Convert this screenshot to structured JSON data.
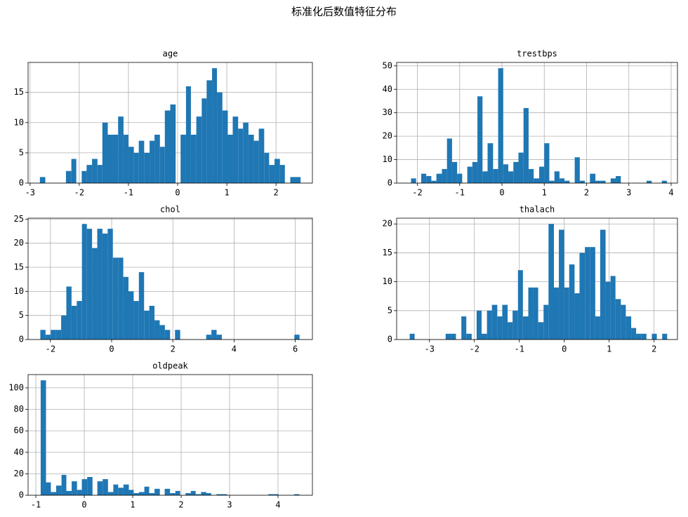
{
  "title": "标准化后数值特征分布",
  "chart_data": [
    {
      "type": "histogram",
      "title": "age",
      "color": "#1f77b4",
      "grid": true,
      "bins": [
        -2.8,
        -2.69,
        -2.59,
        -2.48,
        -2.38,
        -2.27,
        -2.16,
        -2.06,
        -1.95,
        -1.85,
        -1.74,
        -1.63,
        -1.53,
        -1.42,
        -1.32,
        -1.21,
        -1.1,
        -1.0,
        -0.89,
        -0.79,
        -0.68,
        -0.57,
        -0.47,
        -0.36,
        -0.26,
        -0.15,
        -0.04,
        0.06,
        0.17,
        0.27,
        0.38,
        0.49,
        0.59,
        0.7,
        0.8,
        0.91,
        1.02,
        1.12,
        1.23,
        1.33,
        1.44,
        1.55,
        1.65,
        1.76,
        1.86,
        1.97,
        2.08,
        2.18,
        2.29,
        2.39,
        2.5
      ],
      "values": [
        1,
        0,
        0,
        0,
        0,
        2,
        4,
        0,
        2,
        3,
        4,
        3,
        10,
        8,
        8,
        11,
        8,
        6,
        5,
        7,
        5,
        7,
        8,
        6,
        12,
        13,
        0,
        8,
        16,
        8,
        11,
        14,
        17,
        19,
        15,
        12,
        8,
        11,
        9,
        10,
        8,
        7,
        9,
        5,
        3,
        4,
        3,
        0,
        1,
        1
      ],
      "xlim": [
        -3.04,
        2.74
      ],
      "ylim": [
        0,
        19.95
      ],
      "xticks": [
        -3,
        -2,
        -1,
        0,
        1,
        2
      ],
      "yticks": [
        0,
        5,
        10,
        15
      ]
    },
    {
      "type": "histogram",
      "title": "trestbps",
      "color": "#1f77b4",
      "grid": true,
      "bins": [
        -2.15,
        -2.03,
        -1.91,
        -1.79,
        -1.67,
        -1.55,
        -1.42,
        -1.3,
        -1.18,
        -1.06,
        -0.94,
        -0.82,
        -0.7,
        -0.58,
        -0.46,
        -0.34,
        -0.21,
        -0.09,
        0.03,
        0.15,
        0.27,
        0.39,
        0.51,
        0.63,
        0.75,
        0.88,
        1.0,
        1.12,
        1.24,
        1.36,
        1.48,
        1.6,
        1.72,
        1.84,
        1.96,
        2.08,
        2.21,
        2.33,
        2.45,
        2.57,
        2.69,
        2.81,
        2.93,
        3.05,
        3.17,
        3.3,
        3.42,
        3.54,
        3.66,
        3.78,
        3.9
      ],
      "values": [
        2,
        0,
        4,
        3,
        1,
        4,
        6,
        19,
        9,
        4,
        0,
        7,
        9,
        37,
        5,
        17,
        6,
        49,
        8,
        5,
        9,
        13,
        32,
        6,
        2,
        7,
        17,
        1,
        5,
        2,
        1,
        0,
        11,
        1,
        0,
        4,
        1,
        1,
        0,
        2,
        3,
        0,
        0,
        0,
        0,
        0,
        1,
        0,
        0,
        1
      ],
      "xlim": [
        -2.49,
        4.15
      ],
      "ylim": [
        0,
        51.45
      ],
      "xticks": [
        -2,
        -1,
        0,
        1,
        2,
        3,
        4
      ],
      "yticks": [
        0,
        10,
        20,
        30,
        40,
        50
      ]
    },
    {
      "type": "histogram",
      "title": "chol",
      "color": "#1f77b4",
      "grid": true,
      "bins": [
        -2.33,
        -2.16,
        -1.99,
        -1.82,
        -1.65,
        -1.48,
        -1.31,
        -1.14,
        -0.97,
        -0.81,
        -0.64,
        -0.47,
        -0.3,
        -0.13,
        0.04,
        0.21,
        0.38,
        0.55,
        0.72,
        0.89,
        1.06,
        1.23,
        1.4,
        1.57,
        1.74,
        1.91,
        2.07,
        2.24,
        2.41,
        2.58,
        2.75,
        2.92,
        3.09,
        3.26,
        3.43,
        3.6,
        3.77,
        3.94,
        4.11,
        4.28,
        4.45,
        4.62,
        4.79,
        4.96,
        5.13,
        5.3,
        5.47,
        5.63,
        5.8,
        5.97,
        6.14
      ],
      "values": [
        2,
        1,
        2,
        2,
        5,
        11,
        7,
        8,
        24,
        23,
        19,
        23,
        22,
        23,
        17,
        17,
        13,
        10,
        8,
        14,
        6,
        7,
        4,
        3,
        2,
        0,
        2,
        0,
        0,
        0,
        0,
        0,
        1,
        2,
        1,
        0,
        0,
        0,
        0,
        0,
        0,
        0,
        0,
        0,
        0,
        0,
        0,
        0,
        0,
        1
      ],
      "xlim": [
        -2.73,
        6.56
      ],
      "ylim": [
        0,
        25.2
      ],
      "xticks": [
        -2,
        0,
        2,
        4,
        6
      ],
      "yticks": [
        0,
        5,
        10,
        15,
        20,
        25
      ]
    },
    {
      "type": "histogram",
      "title": "thalach",
      "color": "#1f77b4",
      "grid": true,
      "bins": [
        -3.44,
        -3.33,
        -3.21,
        -3.1,
        -2.98,
        -2.87,
        -2.75,
        -2.64,
        -2.52,
        -2.41,
        -2.29,
        -2.18,
        -2.06,
        -1.95,
        -1.84,
        -1.72,
        -1.61,
        -1.49,
        -1.38,
        -1.26,
        -1.15,
        -1.03,
        -0.92,
        -0.8,
        -0.69,
        -0.58,
        -0.46,
        -0.35,
        -0.23,
        -0.12,
        0.0,
        0.11,
        0.23,
        0.34,
        0.46,
        0.57,
        0.69,
        0.8,
        0.92,
        1.03,
        1.14,
        1.26,
        1.37,
        1.49,
        1.6,
        1.72,
        1.83,
        1.95,
        2.06,
        2.18,
        2.29
      ],
      "values": [
        1,
        0,
        0,
        0,
        0,
        0,
        0,
        1,
        1,
        0,
        4,
        1,
        0,
        5,
        1,
        5,
        6,
        4,
        6,
        3,
        5,
        12,
        4,
        9,
        9,
        3,
        6,
        20,
        9,
        19,
        9,
        13,
        8,
        15,
        16,
        16,
        4,
        19,
        10,
        11,
        7,
        6,
        4,
        2,
        1,
        1,
        0,
        1,
        0,
        1
      ],
      "xlim": [
        -3.73,
        2.52
      ],
      "ylim": [
        0,
        21
      ],
      "xticks": [
        -3,
        -2,
        -1,
        0,
        1,
        2
      ],
      "yticks": [
        0,
        5,
        10,
        15,
        20
      ]
    },
    {
      "type": "histogram",
      "title": "oldpeak",
      "color": "#1f77b4",
      "grid": true,
      "bins": [
        -0.9,
        -0.79,
        -0.69,
        -0.58,
        -0.47,
        -0.37,
        -0.26,
        -0.15,
        -0.05,
        0.06,
        0.17,
        0.27,
        0.38,
        0.49,
        0.6,
        0.7,
        0.81,
        0.92,
        1.02,
        1.13,
        1.24,
        1.34,
        1.45,
        1.56,
        1.66,
        1.77,
        1.88,
        1.98,
        2.09,
        2.2,
        2.3,
        2.41,
        2.52,
        2.62,
        2.73,
        2.84,
        2.95,
        3.05,
        3.16,
        3.27,
        3.37,
        3.48,
        3.59,
        3.69,
        3.8,
        3.91,
        4.01,
        4.12,
        4.23,
        4.33,
        4.44
      ],
      "values": [
        107,
        12,
        3,
        9,
        19,
        4,
        13,
        5,
        15,
        17,
        0,
        13,
        15,
        3,
        10,
        7,
        10,
        5,
        2,
        3,
        8,
        2,
        6,
        0,
        6,
        2,
        4,
        0,
        2,
        4,
        1,
        3,
        2,
        0,
        1,
        1,
        0,
        0,
        0,
        0,
        0,
        0,
        0,
        0,
        1,
        1,
        0,
        0,
        0,
        1
      ],
      "xlim": [
        -1.16,
        4.71
      ],
      "ylim": [
        0,
        112.35
      ],
      "xticks": [
        -1,
        0,
        1,
        2,
        3,
        4
      ],
      "yticks": [
        0,
        20,
        40,
        60,
        80,
        100
      ]
    }
  ]
}
